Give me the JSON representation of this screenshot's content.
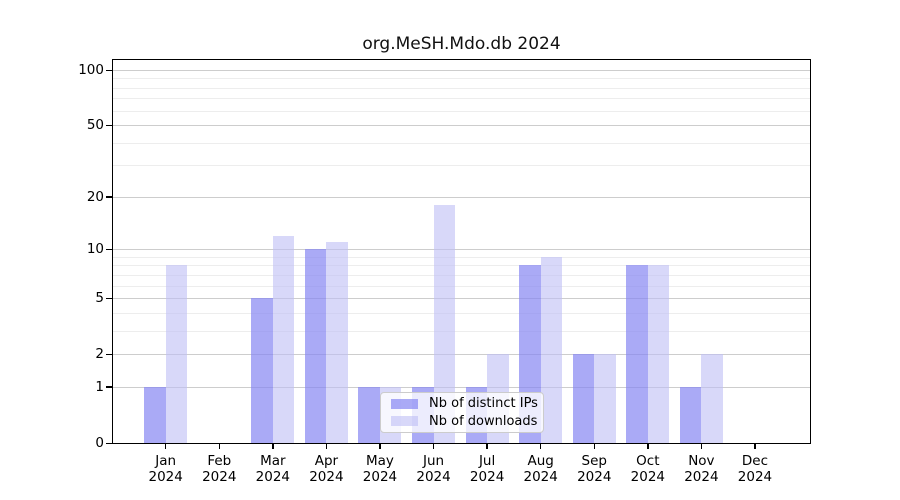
{
  "title": "org.MeSH.Mdo.db 2024",
  "chart_data": {
    "type": "bar",
    "title": "org.MeSH.Mdo.db 2024",
    "categories": [
      "Jan 2024",
      "Feb 2024",
      "Mar 2024",
      "Apr 2024",
      "May 2024",
      "Jun 2024",
      "Jul 2024",
      "Aug 2024",
      "Sep 2024",
      "Oct 2024",
      "Nov 2024",
      "Dec 2024"
    ],
    "series": [
      {
        "name": "Nb of distinct IPs",
        "color": "#a8a8f7",
        "fill_rgba": "rgba(134,134,242,0.70)",
        "values": [
          1,
          0,
          5,
          10,
          1,
          1,
          1,
          8,
          2,
          8,
          1,
          0
        ]
      },
      {
        "name": "Nb of downloads",
        "color": "#d8d8f9",
        "fill_rgba": "rgba(190,190,245,0.60)",
        "values": [
          8,
          0,
          12,
          11,
          1,
          18,
          2,
          9,
          2,
          8,
          2,
          0
        ]
      }
    ],
    "xlabel": "",
    "ylabel": "",
    "yscale": "log1p",
    "yticks": [
      0,
      1,
      2,
      5,
      10,
      20,
      50,
      100
    ],
    "minor_yticks": [
      3,
      4,
      6,
      7,
      8,
      9,
      30,
      40,
      60,
      70,
      80,
      90
    ],
    "ylim": [
      0,
      113
    ],
    "grid": true,
    "legend_position": "lower-center-inside"
  }
}
